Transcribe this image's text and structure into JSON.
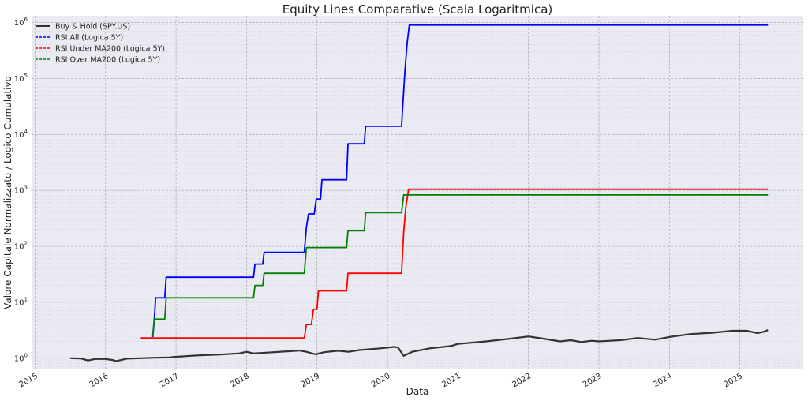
{
  "chart_data": {
    "type": "line",
    "title": "Equity Lines Comparative (Scala Logaritmica)",
    "xlabel": "Data",
    "ylabel": "Valore Capitale Normalizzato / Logico Cumulativo",
    "yscale": "log",
    "xlim": [
      2014.95,
      2025.9
    ],
    "ylim_exp": [
      -0.2,
      6.12
    ],
    "x_ticks": [
      {
        "label": "2015",
        "value": 2015
      },
      {
        "label": "2016",
        "value": 2016
      },
      {
        "label": "2017",
        "value": 2017
      },
      {
        "label": "2018",
        "value": 2018
      },
      {
        "label": "2019",
        "value": 2019
      },
      {
        "label": "2020",
        "value": 2020
      },
      {
        "label": "2021",
        "value": 2021
      },
      {
        "label": "2022",
        "value": 2022
      },
      {
        "label": "2023",
        "value": 2023
      },
      {
        "label": "2024",
        "value": 2024
      },
      {
        "label": "2025",
        "value": 2025
      }
    ],
    "y_ticks": [
      {
        "base": "10",
        "exp": "0",
        "value": 1
      },
      {
        "base": "10",
        "exp": "1",
        "value": 10
      },
      {
        "base": "10",
        "exp": "2",
        "value": 100
      },
      {
        "base": "10",
        "exp": "3",
        "value": 1000
      },
      {
        "base": "10",
        "exp": "4",
        "value": 10000
      },
      {
        "base": "10",
        "exp": "5",
        "value": 100000
      },
      {
        "base": "10",
        "exp": "6",
        "value": 1000000
      }
    ],
    "grid": true,
    "legend_position": "top-left",
    "series": [
      {
        "name": "Buy & Hold (SPY.US)",
        "color": "#333333",
        "style": "solid",
        "points": [
          [
            2015.5,
            1.0
          ],
          [
            2015.65,
            0.99
          ],
          [
            2015.75,
            0.91
          ],
          [
            2015.85,
            0.97
          ],
          [
            2016.0,
            0.97
          ],
          [
            2016.1,
            0.93
          ],
          [
            2016.15,
            0.89
          ],
          [
            2016.3,
            0.98
          ],
          [
            2016.5,
            1.0
          ],
          [
            2016.7,
            1.02
          ],
          [
            2016.9,
            1.03
          ],
          [
            2017.0,
            1.06
          ],
          [
            2017.3,
            1.12
          ],
          [
            2017.6,
            1.16
          ],
          [
            2017.9,
            1.22
          ],
          [
            2018.0,
            1.3
          ],
          [
            2018.1,
            1.22
          ],
          [
            2018.3,
            1.26
          ],
          [
            2018.6,
            1.33
          ],
          [
            2018.75,
            1.37
          ],
          [
            2018.85,
            1.3
          ],
          [
            2018.98,
            1.17
          ],
          [
            2019.1,
            1.28
          ],
          [
            2019.3,
            1.36
          ],
          [
            2019.45,
            1.3
          ],
          [
            2019.6,
            1.4
          ],
          [
            2019.9,
            1.5
          ],
          [
            2020.1,
            1.6
          ],
          [
            2020.15,
            1.55
          ],
          [
            2020.23,
            1.1
          ],
          [
            2020.35,
            1.3
          ],
          [
            2020.6,
            1.5
          ],
          [
            2020.9,
            1.65
          ],
          [
            2021.0,
            1.8
          ],
          [
            2021.4,
            2.0
          ],
          [
            2021.7,
            2.2
          ],
          [
            2022.0,
            2.45
          ],
          [
            2022.2,
            2.25
          ],
          [
            2022.45,
            2.0
          ],
          [
            2022.6,
            2.1
          ],
          [
            2022.75,
            1.95
          ],
          [
            2022.9,
            2.05
          ],
          [
            2023.0,
            2.0
          ],
          [
            2023.3,
            2.1
          ],
          [
            2023.55,
            2.3
          ],
          [
            2023.8,
            2.15
          ],
          [
            2024.0,
            2.4
          ],
          [
            2024.3,
            2.7
          ],
          [
            2024.6,
            2.85
          ],
          [
            2024.9,
            3.1
          ],
          [
            2025.1,
            3.1
          ],
          [
            2025.25,
            2.8
          ],
          [
            2025.35,
            3.0
          ],
          [
            2025.4,
            3.2
          ]
        ]
      },
      {
        "name": "RSI All (Logica 5Y)",
        "color": "#0000ff",
        "style": "dashed",
        "points": [
          [
            2016.67,
            2.4
          ],
          [
            2016.69,
            4.5
          ],
          [
            2016.71,
            12
          ],
          [
            2016.84,
            12
          ],
          [
            2016.86,
            28
          ],
          [
            2018.1,
            28
          ],
          [
            2018.12,
            48
          ],
          [
            2018.23,
            48
          ],
          [
            2018.25,
            78
          ],
          [
            2018.82,
            78
          ],
          [
            2018.85,
            220
          ],
          [
            2018.88,
            380
          ],
          [
            2018.96,
            380
          ],
          [
            2018.99,
            700
          ],
          [
            2019.05,
            700
          ],
          [
            2019.07,
            1550
          ],
          [
            2019.42,
            1550
          ],
          [
            2019.44,
            6800
          ],
          [
            2019.67,
            6800
          ],
          [
            2019.69,
            14000
          ],
          [
            2020.2,
            14000
          ],
          [
            2020.23,
            60000
          ],
          [
            2020.25,
            150000
          ],
          [
            2020.28,
            430000
          ],
          [
            2020.31,
            900000
          ],
          [
            2025.4,
            900000
          ]
        ]
      },
      {
        "name": "RSI Under MA200 (Logica 5Y)",
        "color": "#ff0000",
        "style": "dashed",
        "points": [
          [
            2016.5,
            2.3
          ],
          [
            2018.82,
            2.3
          ],
          [
            2018.85,
            4
          ],
          [
            2018.92,
            4
          ],
          [
            2018.95,
            7.5
          ],
          [
            2019.0,
            7.5
          ],
          [
            2019.02,
            16
          ],
          [
            2019.42,
            16
          ],
          [
            2019.44,
            33
          ],
          [
            2020.2,
            33
          ],
          [
            2020.23,
            180
          ],
          [
            2020.26,
            500
          ],
          [
            2020.3,
            1050
          ],
          [
            2025.4,
            1050
          ]
        ]
      },
      {
        "name": "RSI Over MA200 (Logica 5Y)",
        "color": "#008000",
        "style": "dashed",
        "points": [
          [
            2016.67,
            2.5
          ],
          [
            2016.69,
            5
          ],
          [
            2016.84,
            5
          ],
          [
            2016.86,
            12
          ],
          [
            2018.1,
            12
          ],
          [
            2018.12,
            20
          ],
          [
            2018.23,
            20
          ],
          [
            2018.25,
            33
          ],
          [
            2018.82,
            33
          ],
          [
            2018.85,
            95
          ],
          [
            2019.42,
            95
          ],
          [
            2019.44,
            190
          ],
          [
            2019.67,
            190
          ],
          [
            2019.69,
            400
          ],
          [
            2020.2,
            400
          ],
          [
            2020.23,
            830
          ],
          [
            2025.4,
            830
          ]
        ]
      }
    ]
  }
}
